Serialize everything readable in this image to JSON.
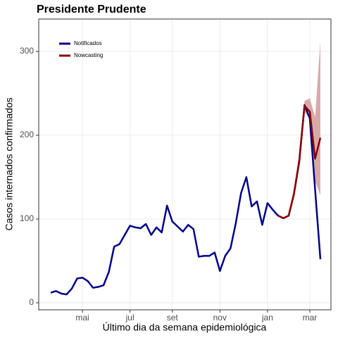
{
  "chart_data": {
    "type": "line",
    "title": "Presidente Prudente",
    "x_label": "Último dia da semana epidemiológica",
    "y_label": "Casos internados confirmados",
    "categories": [
      null,
      null,
      null,
      null,
      null,
      null,
      "mai",
      null,
      null,
      null,
      null,
      null,
      null,
      null,
      null,
      "jul",
      null,
      null,
      null,
      null,
      null,
      null,
      null,
      "set",
      null,
      null,
      null,
      null,
      null,
      null,
      null,
      null,
      "nov",
      null,
      null,
      null,
      null,
      null,
      null,
      null,
      null,
      "jan",
      null,
      null,
      null,
      null,
      null,
      null,
      null,
      "mar",
      null,
      null
    ],
    "series": [
      {
        "name": "Notificados",
        "color": "#00008b",
        "values": [
          12,
          14,
          11,
          10,
          17,
          29,
          30,
          26,
          18,
          19,
          21,
          37,
          67,
          70,
          81,
          92,
          90,
          89,
          94,
          81,
          90,
          84,
          116,
          97,
          91,
          85,
          93,
          88,
          55,
          56,
          56,
          60,
          38,
          56,
          65,
          95,
          131,
          150,
          115,
          121,
          93,
          119,
          111,
          104,
          101,
          104,
          130,
          168,
          236,
          220,
          135,
          52
        ]
      },
      {
        "name": "Nowcasting",
        "color": "#8b0000",
        "values": [
          null,
          null,
          null,
          null,
          null,
          null,
          null,
          null,
          null,
          null,
          null,
          null,
          null,
          null,
          null,
          null,
          null,
          null,
          null,
          null,
          null,
          null,
          null,
          null,
          null,
          null,
          null,
          null,
          null,
          null,
          null,
          null,
          null,
          null,
          null,
          null,
          null,
          null,
          null,
          null,
          null,
          null,
          null,
          104,
          101,
          104,
          130,
          170,
          235,
          228,
          172,
          197
        ],
        "lower": [
          null,
          null,
          null,
          null,
          null,
          null,
          null,
          null,
          null,
          null,
          null,
          null,
          null,
          null,
          null,
          null,
          null,
          null,
          null,
          null,
          null,
          null,
          null,
          null,
          null,
          null,
          null,
          null,
          null,
          null,
          null,
          null,
          null,
          null,
          null,
          null,
          null,
          null,
          null,
          null,
          null,
          null,
          null,
          null,
          null,
          null,
          128,
          163,
          228,
          220,
          145,
          128
        ],
        "upper": [
          null,
          null,
          null,
          null,
          null,
          null,
          null,
          null,
          null,
          null,
          null,
          null,
          null,
          null,
          null,
          null,
          null,
          null,
          null,
          null,
          null,
          null,
          null,
          null,
          null,
          null,
          null,
          null,
          null,
          null,
          null,
          null,
          null,
          null,
          null,
          null,
          null,
          null,
          null,
          null,
          null,
          null,
          null,
          null,
          null,
          null,
          132,
          177,
          241,
          244,
          222,
          312
        ],
        "band_color": "#d9a9a9"
      }
    ],
    "ylim": [
      -8.4,
      338.7
    ],
    "yticks": [
      0,
      100,
      200,
      300
    ],
    "grid": true,
    "legend": "upper left"
  }
}
